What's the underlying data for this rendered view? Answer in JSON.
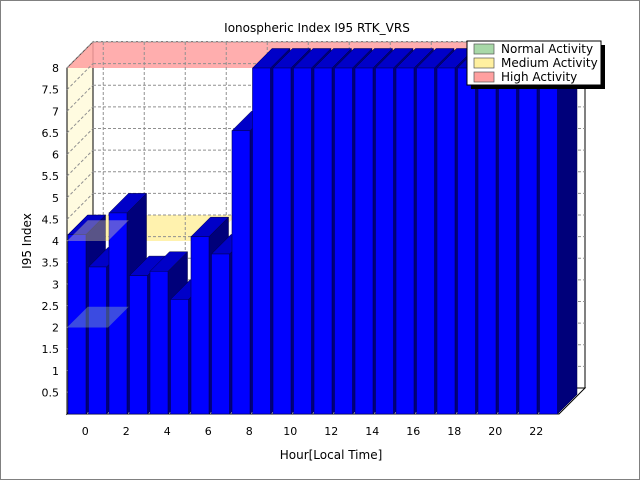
{
  "chart_data": {
    "type": "bar",
    "title": "Ionospheric Index I95 RTK_VRS",
    "xlabel": "Hour[Local Time]",
    "ylabel": "I95 Index",
    "ylim": [
      0,
      8
    ],
    "yticks": [
      "0.5",
      "1",
      "1.5",
      "2",
      "2.5",
      "3",
      "3.5",
      "4",
      "4.5",
      "5",
      "5.5",
      "6",
      "6.5",
      "7",
      "7.5",
      "8"
    ],
    "xticks": [
      "0",
      "2",
      "4",
      "6",
      "8",
      "10",
      "12",
      "14",
      "16",
      "18",
      "20",
      "22"
    ],
    "hours": [
      0,
      1,
      2,
      3,
      4,
      5,
      6,
      7,
      8,
      9,
      10,
      11,
      12,
      13,
      14,
      15,
      16,
      17,
      18,
      19,
      20,
      21,
      22,
      23
    ],
    "values": [
      4.15,
      3.4,
      4.65,
      3.2,
      3.3,
      2.65,
      4.1,
      3.7,
      6.55,
      8,
      8,
      8,
      8,
      8,
      8,
      8,
      8,
      8,
      8,
      8,
      8,
      8,
      8,
      8
    ],
    "bar_color": "#0000ff",
    "grid": true,
    "bands": [
      {
        "name": "Normal Activity",
        "from": 0,
        "to": 2,
        "color": "#a8d8a8"
      },
      {
        "name": "Medium Activity",
        "from": 2,
        "to": 4,
        "color": "#fff0a0"
      },
      {
        "name": "High Activity",
        "from": 4,
        "to": 8,
        "color": "#ffa0a0"
      }
    ],
    "legend_position": "top-right",
    "wall_color": "#fffbe0"
  }
}
